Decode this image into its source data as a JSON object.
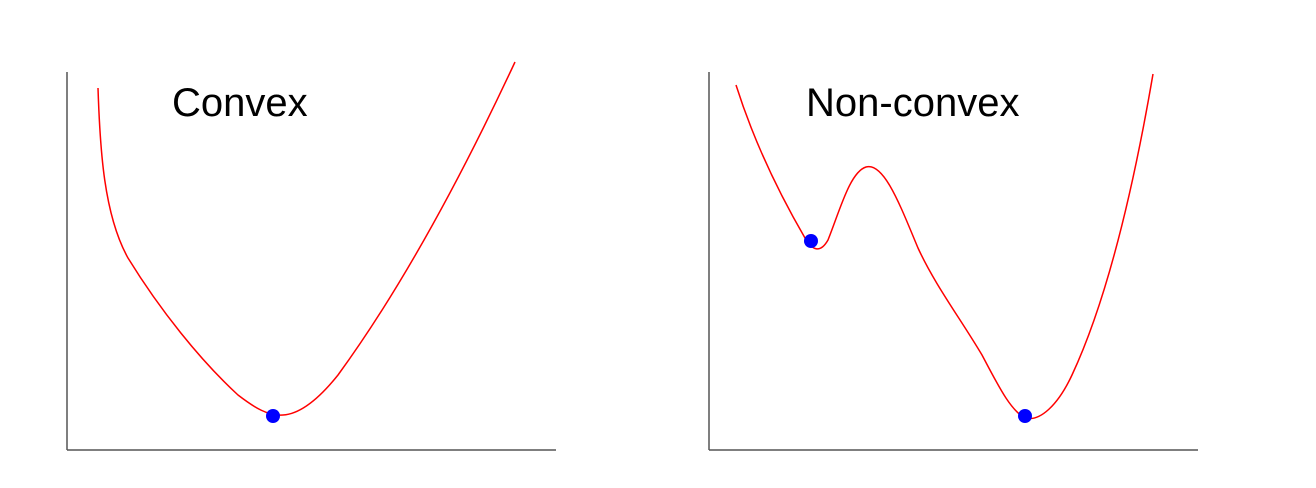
{
  "diagram": {
    "panels": [
      {
        "title": "Convex",
        "curve_color": "#ff0000",
        "marker_color": "#0000ff",
        "axis_color": "#555555",
        "minima": [
          "global-minimum"
        ]
      },
      {
        "title": "Non-convex",
        "curve_color": "#ff0000",
        "marker_color": "#0000ff",
        "axis_color": "#555555",
        "minima": [
          "local-minimum",
          "global-minimum"
        ]
      }
    ]
  }
}
